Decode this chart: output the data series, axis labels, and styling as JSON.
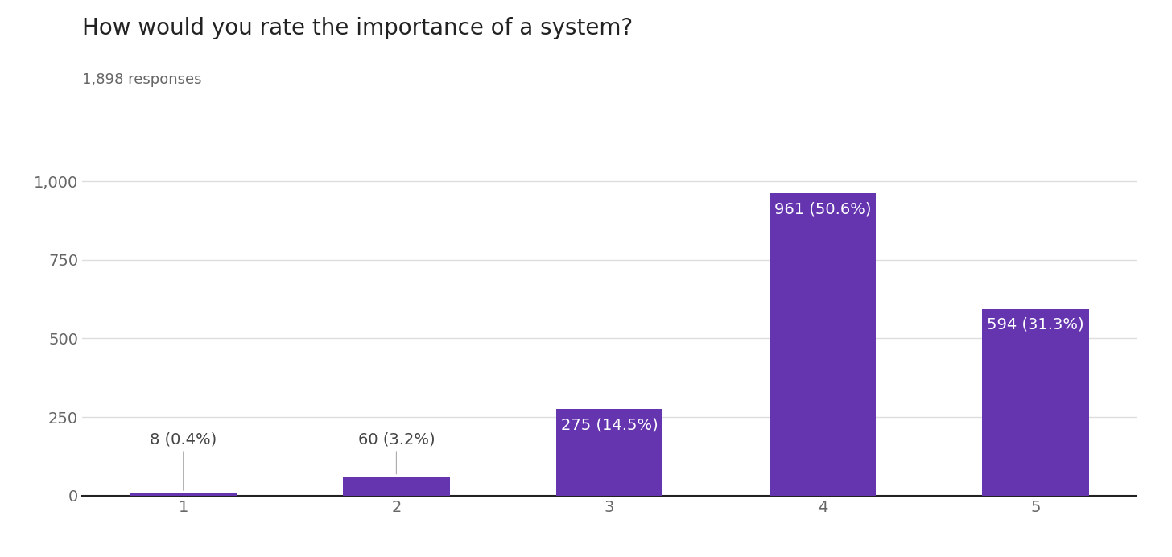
{
  "title": "How would you rate the importance of a system?",
  "subtitle": "1,898 responses",
  "categories": [
    1,
    2,
    3,
    4,
    5
  ],
  "values": [
    8,
    60,
    275,
    961,
    594
  ],
  "labels": [
    "8 (0.4%)",
    "60 (3.2%)",
    "275 (14.5%)",
    "961 (50.6%)",
    "594 (31.3%)"
  ],
  "bar_color": "#6535b0",
  "label_color_outside": "#444444",
  "label_color_inside": "#ffffff",
  "background_color": "#ffffff",
  "grid_color": "#dddddd",
  "ylim": [
    0,
    1080
  ],
  "yticks": [
    0,
    250,
    500,
    750,
    1000
  ],
  "title_fontsize": 20,
  "subtitle_fontsize": 13,
  "tick_fontsize": 14,
  "label_fontsize": 14,
  "bar_width": 0.5
}
